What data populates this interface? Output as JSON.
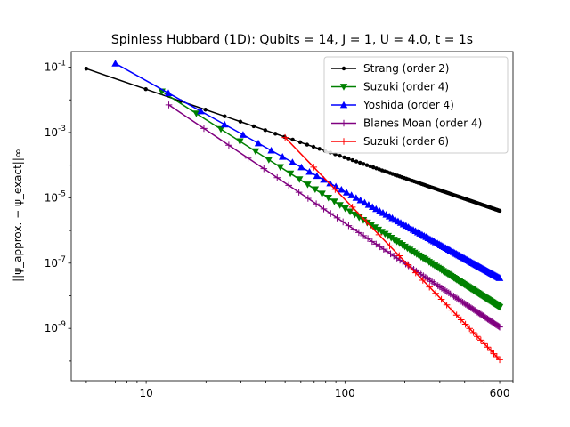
{
  "chart_data": {
    "type": "line",
    "title": "Spinless Hubbard (1D): Qubits = 14, J = 1, U = 4.0, t = 1s",
    "ylabel": "||ψ_approx. − ψ_exact||∞",
    "xscale": "log",
    "yscale": "log",
    "xlim": [
      4.2,
      700
    ],
    "ylim": [
      2.5e-11,
      0.3
    ],
    "x_ticks": [
      10,
      100,
      600
    ],
    "x_tick_labels": [
      "10",
      "100",
      "600"
    ],
    "y_ticks": [
      1e-09,
      1e-07,
      1e-05,
      0.001,
      0.1
    ],
    "y_tick_labels": [
      "10^-9",
      "10^-7",
      "10^-5",
      "10^-3",
      "10^-1"
    ],
    "grid": false,
    "legend_position": "top-right",
    "series": [
      {
        "name": "Strang (order 2)",
        "color": "#000000",
        "marker": "dot",
        "x_start": 5,
        "x_end": 600,
        "steps": 120,
        "y_start": 0.09,
        "y_end": 4e-06
      },
      {
        "name": "Suzuki (order 4)",
        "color": "#008000",
        "marker": "triangle-down",
        "x_start": 12,
        "x_end": 600,
        "steps": 100,
        "y_start": 0.018,
        "y_end": 4.5e-09
      },
      {
        "name": "Yoshida (order 4)",
        "color": "#0000ff",
        "marker": "triangle-up",
        "x_start": 7,
        "x_end": 600,
        "steps": 100,
        "y_start": 0.13,
        "y_end": 3.5e-08
      },
      {
        "name": "Blanes Moan (order 4)",
        "color": "#800080",
        "marker": "plus",
        "x_start": 13,
        "x_end": 600,
        "steps": 90,
        "y_start": 0.007,
        "y_end": 1.1e-09
      },
      {
        "name": "Suzuki (order 6)",
        "color": "#ff0000",
        "marker": "plus",
        "x_start": 50,
        "x_end": 600,
        "steps": 28,
        "y_start": 0.0007,
        "y_end": 1.1e-10
      }
    ]
  }
}
